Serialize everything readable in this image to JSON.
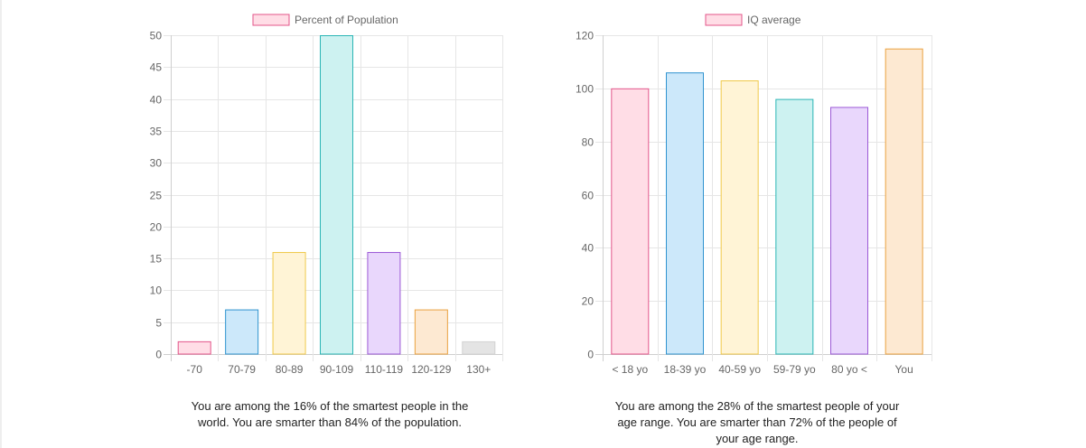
{
  "chart_data": [
    {
      "type": "bar",
      "legend": "Percent of Population",
      "legend_position": "top",
      "categories": [
        "-70",
        "70-79",
        "80-89",
        "90-109",
        "110-119",
        "120-129",
        "130+"
      ],
      "values": [
        2,
        7,
        16,
        50,
        16,
        7,
        2
      ],
      "ylim": [
        0,
        50
      ],
      "yticks": [
        0,
        5,
        10,
        15,
        20,
        25,
        30,
        35,
        40,
        45,
        50
      ],
      "grid": true,
      "colors": [
        {
          "fill": "#ffdde6",
          "stroke": "#e3558a"
        },
        {
          "fill": "#cce8fa",
          "stroke": "#2f93cf"
        },
        {
          "fill": "#fff4d6",
          "stroke": "#f0c94a"
        },
        {
          "fill": "#cdf2f1",
          "stroke": "#2bb5b5"
        },
        {
          "fill": "#e9d7fc",
          "stroke": "#9b59d6"
        },
        {
          "fill": "#fde9d2",
          "stroke": "#eaa13f"
        },
        {
          "fill": "#e4e4e4",
          "stroke": "#d2d2d2"
        }
      ]
    },
    {
      "type": "bar",
      "legend": "IQ average",
      "legend_position": "top",
      "categories": [
        "< 18 yo",
        "18-39 yo",
        "40-59 yo",
        "59-79 yo",
        "80 yo <",
        "You"
      ],
      "values": [
        100,
        106,
        103,
        96,
        93,
        115
      ],
      "ylim": [
        0,
        120
      ],
      "yticks": [
        0,
        20,
        40,
        60,
        80,
        100,
        120
      ],
      "grid": true,
      "colors": [
        {
          "fill": "#ffdde6",
          "stroke": "#e3558a"
        },
        {
          "fill": "#cce8fa",
          "stroke": "#2f93cf"
        },
        {
          "fill": "#fff4d6",
          "stroke": "#f0c94a"
        },
        {
          "fill": "#cdf2f1",
          "stroke": "#2bb5b5"
        },
        {
          "fill": "#e9d7fc",
          "stroke": "#9b59d6"
        },
        {
          "fill": "#fde9d2",
          "stroke": "#eaa13f"
        }
      ]
    }
  ],
  "captions": {
    "population": "You are among the 16% of the smartest people in the world. You are smarter than 84% of the population.",
    "age_range": "You are among the 28% of the smartest people of your age range. You are smarter than 72% of the people of your age range."
  }
}
